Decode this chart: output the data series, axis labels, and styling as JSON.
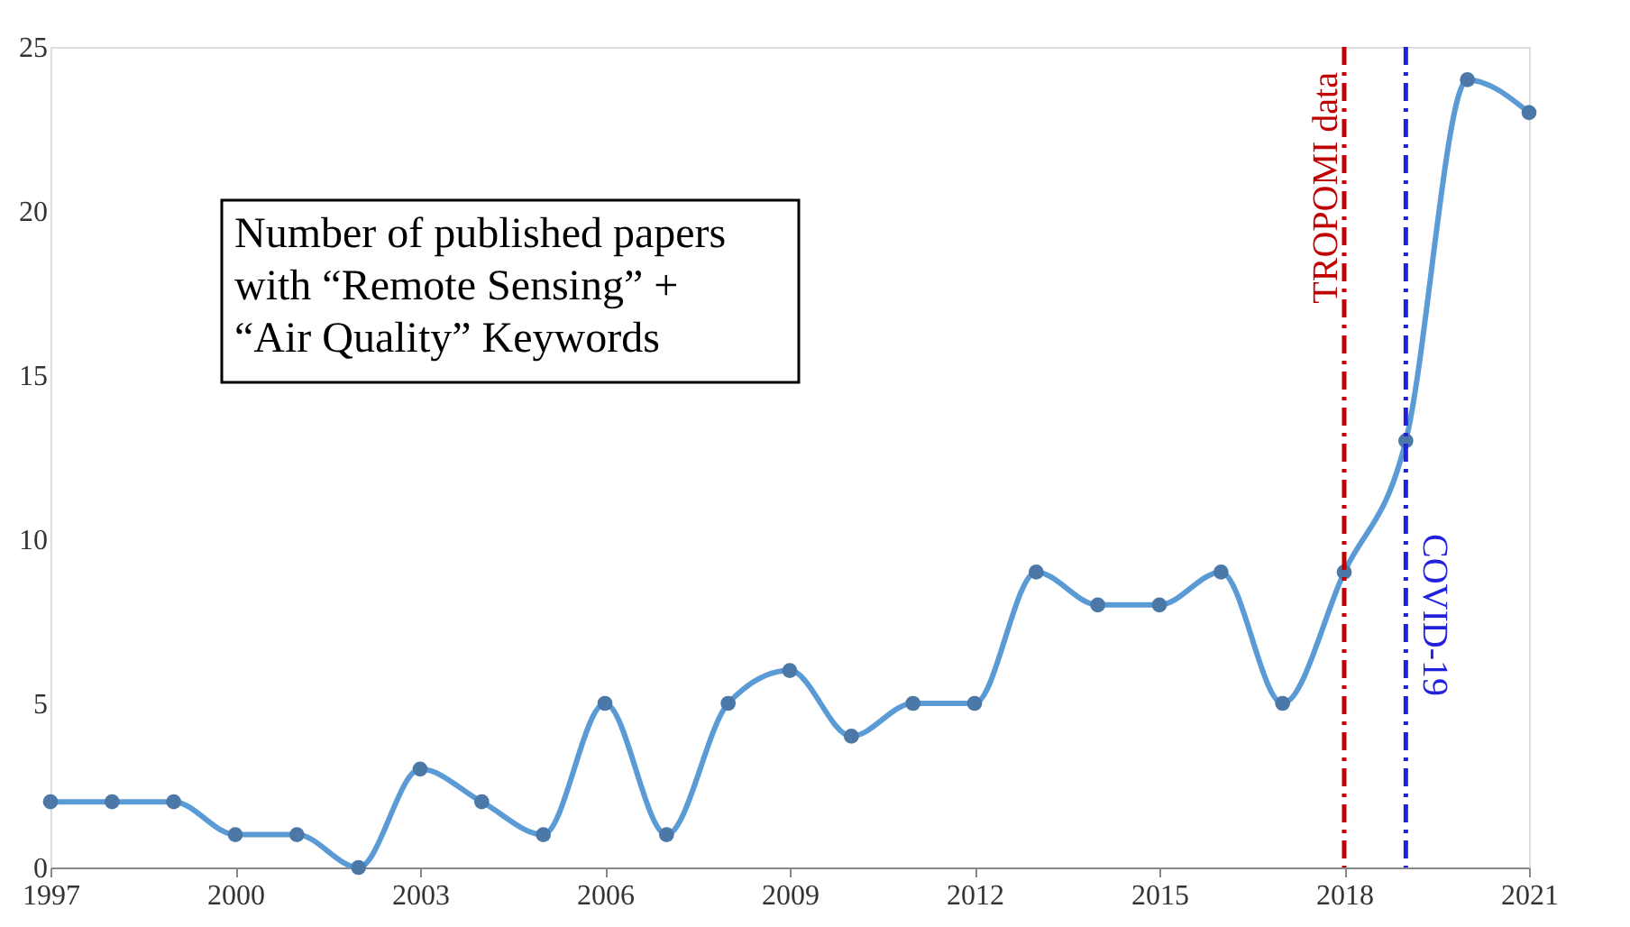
{
  "chart_data": {
    "type": "line",
    "x": [
      1997,
      1998,
      1999,
      2000,
      2001,
      2002,
      2003,
      2004,
      2005,
      2006,
      2007,
      2008,
      2009,
      2010,
      2011,
      2012,
      2013,
      2014,
      2015,
      2016,
      2017,
      2018,
      2019,
      2020,
      2021
    ],
    "series": [
      {
        "color": "#5b9bd5",
        "values": [
          2,
          2,
          2,
          1,
          1,
          0,
          3,
          2,
          1,
          5,
          1,
          5,
          6,
          4,
          5,
          5,
          9,
          8,
          8,
          9,
          5,
          9,
          13,
          24,
          23
        ]
      }
    ],
    "xlim": [
      1997,
      2021
    ],
    "xticks": [
      1997,
      2000,
      2003,
      2006,
      2009,
      2012,
      2015,
      2018,
      2021
    ],
    "ylim": [
      0,
      25
    ],
    "yticks": [
      0,
      5,
      10,
      15,
      20,
      25
    ],
    "grid": false,
    "marker": "circle",
    "line_style": "solid",
    "ref_lines": [
      {
        "axis": "x",
        "value": 2018,
        "label": "TROPOMI data",
        "color": "#c00000",
        "line_style": "dashed"
      },
      {
        "axis": "x",
        "value": 2019,
        "label": "COVID-19",
        "color": "#2222dd",
        "line_style": "dashed"
      }
    ],
    "annotations": [
      "Number of published papers with “Remote Sensing” + “Air Quality” Keywords"
    ]
  }
}
